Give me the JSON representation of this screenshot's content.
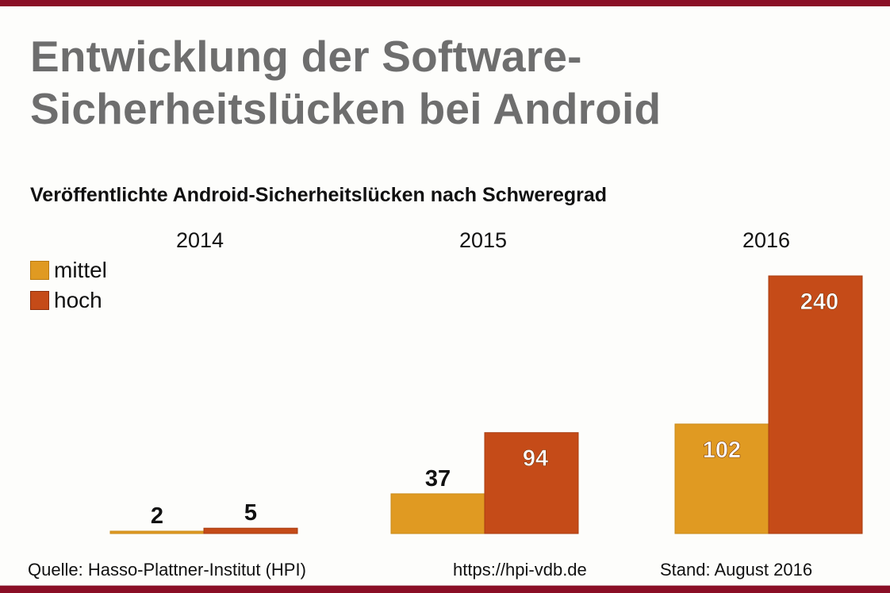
{
  "header": {
    "title_line1": "Entwicklung der Software-",
    "title_line2": "Sicherheitslücken bei Android"
  },
  "chart_data": {
    "type": "bar",
    "title": "Veröffentlichte Android-Sicherheitslücken nach Schweregrad",
    "categories": [
      "2014",
      "2015",
      "2016"
    ],
    "series": [
      {
        "name": "mittel",
        "color": "#e09a22",
        "values": [
          2,
          37,
          102
        ]
      },
      {
        "name": "hoch",
        "color": "#c54b18",
        "values": [
          5,
          94,
          240
        ]
      }
    ],
    "xlabel": "",
    "ylabel": "",
    "ylim": [
      0,
      240
    ],
    "grid": false,
    "legend": "top-left",
    "data_labels": true
  },
  "footer": {
    "source": "Quelle: Hasso-Plattner-Institut (HPI)",
    "url": "https://hpi-vdb.de",
    "date": "Stand: August 2016"
  }
}
